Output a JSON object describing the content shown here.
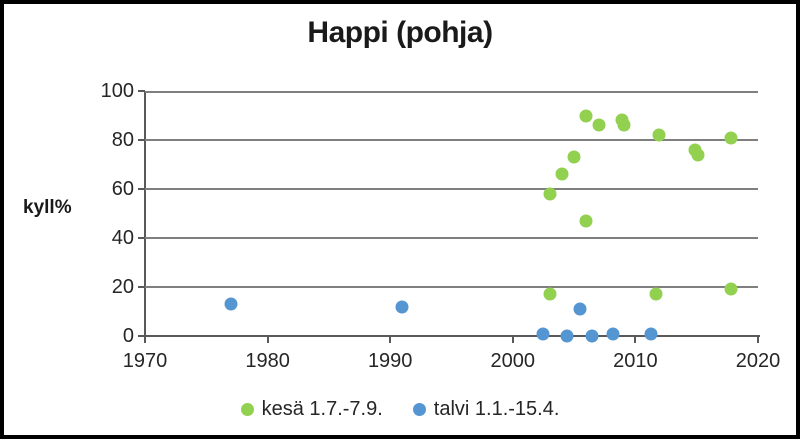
{
  "chart_data": {
    "type": "scatter",
    "title": "Happi (pohja)",
    "ylabel": "kyll%",
    "xlabel": "",
    "xlim": [
      1970,
      2020
    ],
    "ylim": [
      0,
      100
    ],
    "xticks": [
      1970,
      1980,
      1990,
      2000,
      2010,
      2020
    ],
    "yticks": [
      0,
      20,
      40,
      60,
      80,
      100
    ],
    "grid": true,
    "legend_position": "bottom",
    "grid_color": "#7f7f7f",
    "axis_color": "#595959",
    "text_color": "#262626",
    "series": [
      {
        "key": "kesa",
        "name": "kesä 1.7.-7.9.",
        "color": "#92d050",
        "points": [
          [
            2003,
            17
          ],
          [
            2003,
            58
          ],
          [
            2004,
            66
          ],
          [
            2005,
            73
          ],
          [
            2006,
            47
          ],
          [
            2006,
            90
          ],
          [
            2007,
            86
          ],
          [
            2008.9,
            88
          ],
          [
            2009.1,
            86
          ],
          [
            2011.7,
            17
          ],
          [
            2011.9,
            82
          ],
          [
            2014.9,
            76
          ],
          [
            2015.1,
            74
          ],
          [
            2017.8,
            19
          ],
          [
            2017.8,
            81
          ]
        ]
      },
      {
        "key": "talvi",
        "name": "talvi 1.1.-15.4.",
        "color": "#5596d2",
        "points": [
          [
            1977,
            13
          ],
          [
            1991,
            12
          ],
          [
            2002.5,
            1
          ],
          [
            2004.4,
            0
          ],
          [
            2005.5,
            11
          ],
          [
            2006.5,
            0
          ],
          [
            2008.2,
            1
          ],
          [
            2011.3,
            1
          ]
        ]
      }
    ]
  }
}
